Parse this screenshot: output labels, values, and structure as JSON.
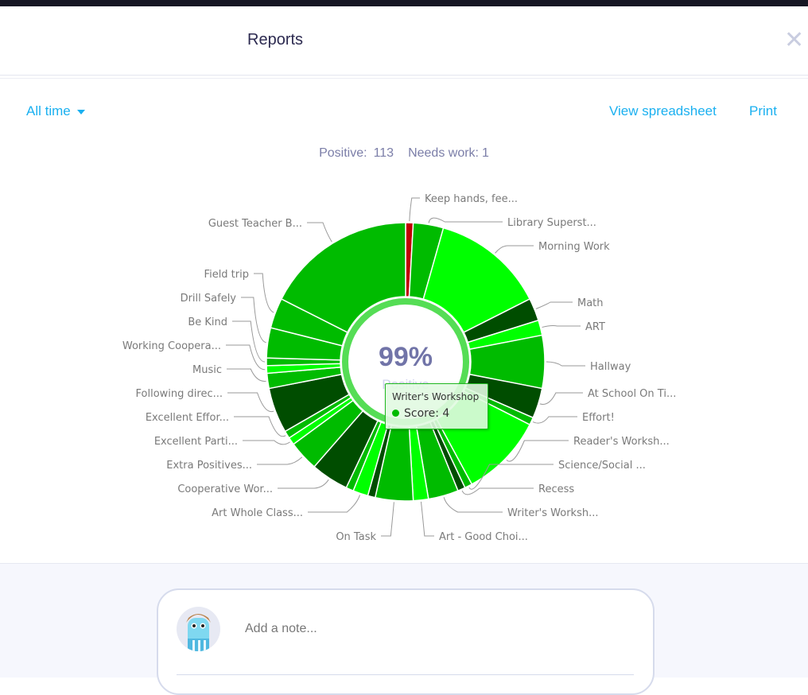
{
  "header": {
    "title": "Reports",
    "close_icon": "close-x-icon"
  },
  "toolbar": {
    "range": "All time",
    "view_spreadsheet": "View spreadsheet",
    "print": "Print"
  },
  "summary": {
    "positive_label": "Positive:",
    "positive": "113",
    "needs_work_label": "Needs work:",
    "needs_work": "1"
  },
  "chart_data": {
    "type": "pie",
    "variant": "donut",
    "center_value": "99%",
    "center_label": "Positive",
    "colors": {
      "needs_work": "#c00000",
      "green": "#00bb00",
      "bright": "#00ff00",
      "dark": "#004d00"
    },
    "slices": [
      {
        "label": "Keep hands, fee...",
        "value": 1,
        "color": "#c00000"
      },
      {
        "label": "Library Superst...",
        "value": 4,
        "color": "#00bb00"
      },
      {
        "label": "Morning Work",
        "value": 15,
        "color": "#00ff00"
      },
      {
        "label": "Math",
        "value": 3,
        "color": "#004d00"
      },
      {
        "label": "ART",
        "value": 2,
        "color": "#00ff00"
      },
      {
        "label": "Hallway",
        "value": 7,
        "color": "#00bb00"
      },
      {
        "label": "At School On Ti...",
        "value": 4,
        "color": "#004d00"
      },
      {
        "label": "Effort!",
        "value": 1,
        "color": "#00bb00"
      },
      {
        "label": "Reader's Worksh...",
        "value": 11,
        "color": "#00ff00"
      },
      {
        "label": "Science/Social ...",
        "value": 1,
        "color": "#00bb00"
      },
      {
        "label": "Recess",
        "value": 1,
        "color": "#004d00"
      },
      {
        "label": "Writer's Worksh...",
        "value": 4,
        "color": "#00bb00"
      },
      {
        "label": "Art - Good Choi...",
        "value": 2,
        "color": "#00ff00"
      },
      {
        "label": "On Task",
        "value": 5,
        "color": "#00bb00"
      },
      {
        "label": "",
        "value": 1,
        "color": "#004d00"
      },
      {
        "label": "Art Whole Class...",
        "value": 2,
        "color": "#00ff00"
      },
      {
        "label": "",
        "value": 1,
        "color": "#00bb00"
      },
      {
        "label": "Cooperative Wor...",
        "value": 5,
        "color": "#004d00"
      },
      {
        "label": "Extra Positives...",
        "value": 4,
        "color": "#00bb00"
      },
      {
        "label": "Excellent Parti...",
        "value": 1,
        "color": "#00ff00"
      },
      {
        "label": "Excellent Effor...",
        "value": 1,
        "color": "#00bb00"
      },
      {
        "label": "Following direc...",
        "value": 6,
        "color": "#004d00"
      },
      {
        "label": "Music",
        "value": 2,
        "color": "#00bb00"
      },
      {
        "label": "Working Coopera...",
        "value": 1,
        "color": "#00ff00"
      },
      {
        "label": "Be Kind",
        "value": 1,
        "color": "#00bb00"
      },
      {
        "label": "Drill Safely",
        "value": 4,
        "color": "#00bb00"
      },
      {
        "label": "Field trip",
        "value": 4,
        "color": "#00bb00"
      },
      {
        "label": "Guest Teacher B...",
        "value": 20,
        "color": "#00bb00"
      }
    ],
    "tooltip": {
      "title": "Writer's Workshop",
      "series": "Score:",
      "value": "4"
    }
  },
  "notes": {
    "placeholder": "Add a note..."
  }
}
